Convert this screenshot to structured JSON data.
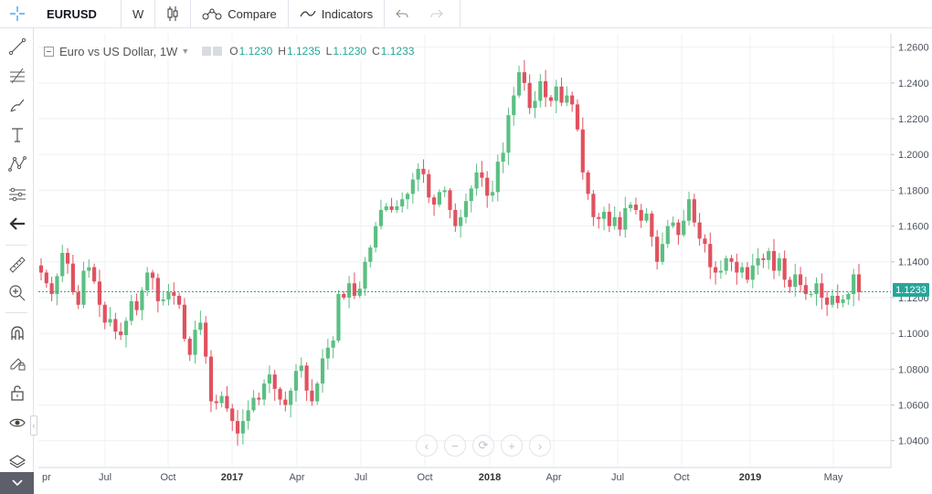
{
  "toolbar": {
    "symbol": "EURUSD",
    "interval": "W",
    "compare_label": "Compare",
    "indicators_label": "Indicators"
  },
  "left_tools": [
    "crosshair-icon",
    "trendline-icon",
    "fib-icon",
    "brush-icon",
    "text-icon",
    "pattern-icon",
    "measure-icon",
    "back-arrow-icon",
    "ruler-icon",
    "zoom-in-icon",
    "magnet-icon",
    "lock-drawing-icon",
    "lock-icon",
    "eye-icon",
    "layers-icon"
  ],
  "legend": {
    "title": "Euro vs US Dollar, 1W",
    "open_label": "O",
    "open": "1.1230",
    "high_label": "H",
    "high": "1.1235",
    "low_label": "L",
    "low": "1.1230",
    "close_label": "C",
    "close": "1.1233"
  },
  "last_price": "1.1233",
  "colors": {
    "up": "#26a69a",
    "down": "#ef5350",
    "up_fill": "#5cbf82",
    "down_fill": "#e0525f",
    "grid": "#eef0f3",
    "price_line": "#26a69a"
  },
  "nav_buttons": [
    "‹",
    "−",
    "⟳",
    "+",
    "›"
  ],
  "chart_data": {
    "type": "candlestick",
    "title": "Euro vs US Dollar, 1W",
    "y_ticks": [
      "1.2600",
      "1.2400",
      "1.2200",
      "1.2000",
      "1.1800",
      "1.1600",
      "1.1400",
      "1.1200",
      "1.1000",
      "1.0800",
      "1.0600",
      "1.0400"
    ],
    "ylim": [
      1.025,
      1.2675
    ],
    "x_ticks": [
      "pr",
      "Jul",
      "Oct",
      "2017",
      "Apr",
      "Jul",
      "Oct",
      "2018",
      "Apr",
      "Jul",
      "Oct",
      "2019",
      "May"
    ],
    "bold_x_ticks": [
      "2017",
      "2018",
      "2019"
    ],
    "xlim": [
      2016.25,
      2019.47
    ],
    "grid": true,
    "last_value": 1.1233,
    "closes": [
      1.134,
      1.128,
      1.122,
      1.132,
      1.145,
      1.139,
      1.123,
      1.116,
      1.135,
      1.137,
      1.129,
      1.116,
      1.106,
      1.108,
      1.101,
      1.099,
      1.107,
      1.118,
      1.113,
      1.124,
      1.134,
      1.131,
      1.118,
      1.119,
      1.123,
      1.121,
      1.116,
      1.097,
      1.088,
      1.102,
      1.106,
      1.087,
      1.062,
      1.061,
      1.065,
      1.058,
      1.051,
      1.044,
      1.051,
      1.057,
      1.064,
      1.063,
      1.072,
      1.077,
      1.069,
      1.063,
      1.06,
      1.068,
      1.079,
      1.082,
      1.068,
      1.062,
      1.072,
      1.086,
      1.092,
      1.096,
      1.122,
      1.12,
      1.128,
      1.121,
      1.125,
      1.14,
      1.148,
      1.16,
      1.169,
      1.171,
      1.169,
      1.171,
      1.175,
      1.178,
      1.186,
      1.192,
      1.189,
      1.176,
      1.172,
      1.179,
      1.18,
      1.169,
      1.16,
      1.165,
      1.174,
      1.181,
      1.19,
      1.187,
      1.177,
      1.179,
      1.196,
      1.201,
      1.222,
      1.233,
      1.246,
      1.24,
      1.226,
      1.23,
      1.241,
      1.232,
      1.23,
      1.238,
      1.229,
      1.233,
      1.228,
      1.214,
      1.19,
      1.178,
      1.165,
      1.164,
      1.168,
      1.16,
      1.165,
      1.158,
      1.17,
      1.172,
      1.169,
      1.163,
      1.167,
      1.154,
      1.14,
      1.15,
      1.16,
      1.162,
      1.155,
      1.163,
      1.175,
      1.162,
      1.153,
      1.15,
      1.137,
      1.134,
      1.135,
      1.142,
      1.14,
      1.134,
      1.137,
      1.13,
      1.138,
      1.142,
      1.141,
      1.146,
      1.135,
      1.142,
      1.13,
      1.126,
      1.133,
      1.127,
      1.122,
      1.122,
      1.128,
      1.12,
      1.116,
      1.121,
      1.117,
      1.119,
      1.122,
      1.133,
      1.123
    ]
  }
}
